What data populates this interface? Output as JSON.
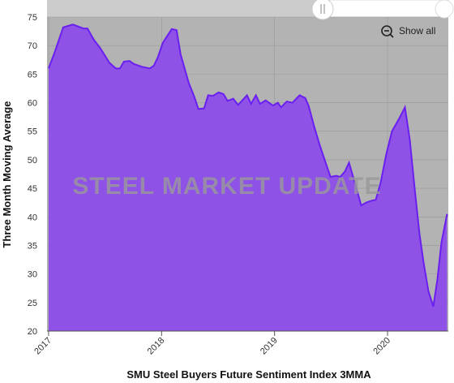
{
  "chart_data": {
    "type": "area",
    "ylabel": "Three Month Moving Average",
    "xlabel": "SMU Steel Buyers Future Sentiment Index 3MMA",
    "watermark": "STEEL MARKET UPDATE",
    "button": "Show all",
    "color": "#8f52e6",
    "line_color": "#6a1ff0",
    "background": "#b3b3b3",
    "grid": true,
    "xlim": [
      2016.986,
      2020.538
    ],
    "xticks": [
      2017,
      2018,
      2019,
      2020
    ],
    "ylim": [
      20,
      75
    ],
    "yticks": [
      20,
      25,
      30,
      35,
      40,
      45,
      50,
      55,
      60,
      65,
      70,
      75
    ],
    "x": [
      2017.0,
      2017.057,
      2017.129,
      2017.215,
      2017.308,
      2017.344,
      2017.401,
      2017.459,
      2017.538,
      2017.595,
      2017.631,
      2017.667,
      2017.717,
      2017.753,
      2017.824,
      2017.896,
      2017.932,
      2017.968,
      2018.011,
      2018.09,
      2018.133,
      2018.168,
      2018.24,
      2018.29,
      2018.326,
      2018.376,
      2018.412,
      2018.455,
      2018.505,
      2018.548,
      2018.584,
      2018.634,
      2018.677,
      2018.756,
      2018.792,
      2018.835,
      2018.871,
      2018.921,
      2018.986,
      2019.029,
      2019.057,
      2019.108,
      2019.158,
      2019.222,
      2019.272,
      2019.301,
      2019.351,
      2019.401,
      2019.452,
      2019.495,
      2019.545,
      2019.581,
      2019.624,
      2019.659,
      2019.71,
      2019.767,
      2019.81,
      2019.853,
      2019.896,
      2019.939,
      2019.989,
      2020.039,
      2020.097,
      2020.154,
      2020.197,
      2020.24,
      2020.283,
      2020.319,
      2020.362,
      2020.405,
      2020.441,
      2020.477,
      2020.527
    ],
    "values": [
      66,
      69,
      73.2,
      73.7,
      73,
      73,
      71,
      69.5,
      67,
      66,
      66,
      67.2,
      67.3,
      66.8,
      66.3,
      66,
      66.5,
      68,
      70.5,
      72.9,
      72.7,
      68.5,
      63.5,
      61,
      58.9,
      59,
      61.3,
      61.2,
      61.8,
      61.5,
      60.3,
      60.7,
      59.6,
      61.3,
      59.8,
      61.3,
      59.8,
      60.4,
      59.5,
      60,
      59.2,
      60.2,
      60,
      61.3,
      60.8,
      59.5,
      55.8,
      52.5,
      49.5,
      47,
      47.2,
      47,
      48,
      49.5,
      46,
      42,
      42.5,
      42.8,
      43,
      46,
      51,
      55,
      57,
      59.2,
      53.5,
      45,
      37,
      32,
      27,
      24.3,
      29,
      35.5,
      40.5
    ]
  }
}
